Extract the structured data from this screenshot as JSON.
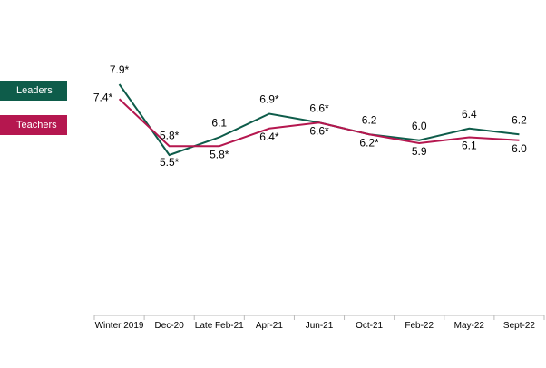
{
  "chart_data": {
    "type": "line",
    "categories": [
      "Winter 2019",
      "Dec-20",
      "Late Feb-21",
      "Apr-21",
      "Jun-21",
      "Oct-21",
      "Feb-22",
      "May-22",
      "Sept-22"
    ],
    "series": [
      {
        "name": "Leaders",
        "color": "#0e5c4a",
        "values": [
          7.9,
          5.5,
          6.1,
          6.9,
          6.6,
          6.2,
          6.0,
          6.4,
          6.2
        ],
        "value_labels": [
          "7.9*",
          "5.5*",
          "6.1",
          "6.9*",
          "6.6*",
          "6.2",
          "6.0",
          "6.4",
          "6.2"
        ]
      },
      {
        "name": "Teachers",
        "color": "#b5174f",
        "values": [
          7.4,
          5.8,
          5.8,
          6.4,
          6.6,
          6.2,
          5.9,
          6.1,
          6.0
        ],
        "value_labels": [
          "7.4*",
          "5.8*",
          "5.8*",
          "6.4*",
          "6.6*",
          "6.2*",
          "5.9",
          "6.1",
          "6.0"
        ]
      }
    ]
  }
}
